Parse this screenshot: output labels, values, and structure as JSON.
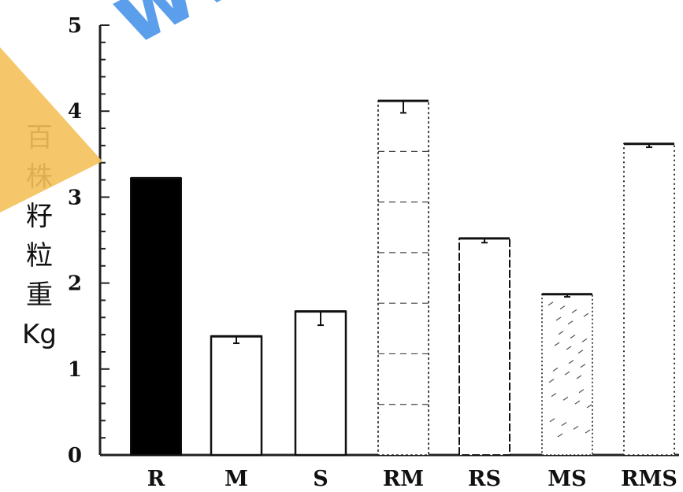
{
  "chart_data": {
    "type": "bar",
    "ylabel": "百株籽粒重Kg",
    "categories": [
      "R",
      "M",
      "S",
      "RM",
      "RS",
      "MS",
      "RMS"
    ],
    "values": [
      3.22,
      1.38,
      1.67,
      4.12,
      2.52,
      1.87,
      3.62
    ],
    "errors": [
      0.0,
      0.08,
      0.16,
      0.14,
      0.05,
      0.03,
      0.04
    ],
    "bar_styles": [
      "solid",
      "outline",
      "outline",
      "dashed-grid",
      "outline-dotted",
      "dotted-texture",
      "dotted"
    ],
    "ylim": [
      0,
      5
    ],
    "yticks": [
      "0",
      "1",
      "2",
      "3",
      "4",
      "5"
    ],
    "grid": false,
    "legend": "none",
    "colors": {
      "bar_fill": "#000000",
      "outline": "#111111",
      "watermark": "#3f8ee8",
      "watermark_arrow": "#f4c15a"
    }
  },
  "watermark": {
    "text": "www.g"
  }
}
